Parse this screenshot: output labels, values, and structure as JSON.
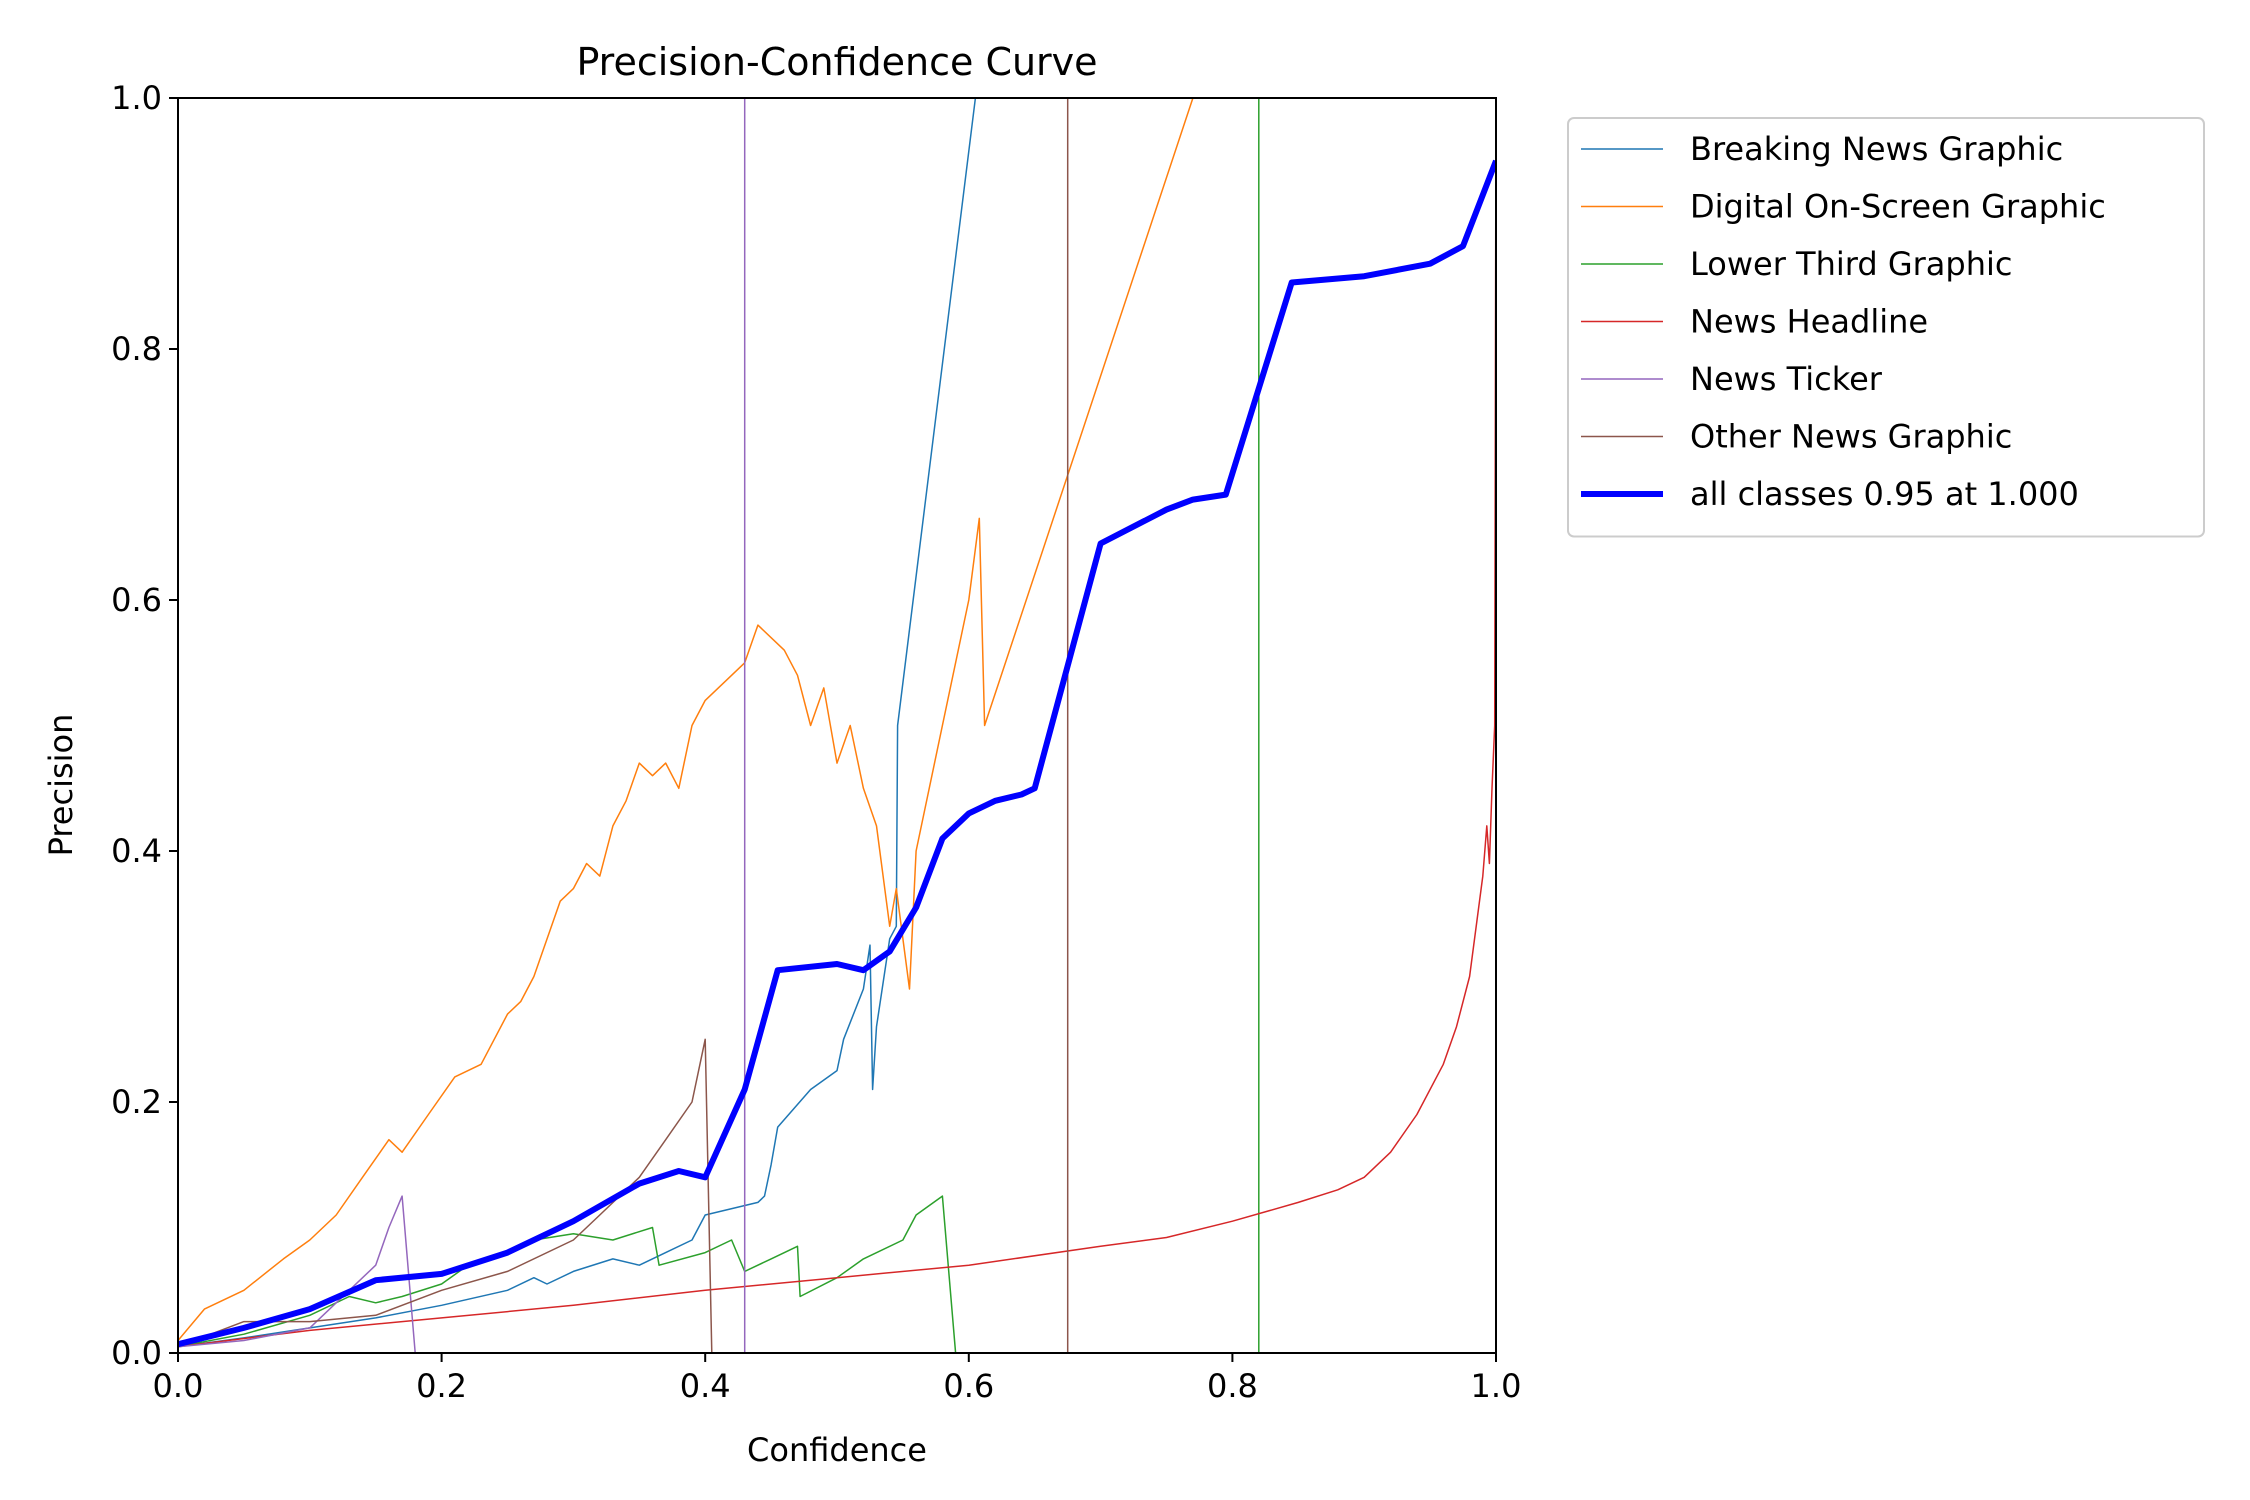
{
  "chart_data": {
    "type": "line",
    "title": "Precision-Confidence Curve",
    "xlabel": "Confidence",
    "ylabel": "Precision",
    "xlim": [
      0,
      1
    ],
    "ylim": [
      0,
      1
    ],
    "xticks": [
      "0.0",
      "0.2",
      "0.4",
      "0.6",
      "0.8",
      "1.0"
    ],
    "yticks": [
      "0.0",
      "0.2",
      "0.4",
      "0.6",
      "0.8",
      "1.0"
    ],
    "grid": false,
    "legend_position": "outside-top-right",
    "series": [
      {
        "name": "Breaking News Graphic",
        "color": "#1f77b4",
        "width": 1.5,
        "points": [
          [
            0,
            0.005
          ],
          [
            0.05,
            0.012
          ],
          [
            0.1,
            0.02
          ],
          [
            0.15,
            0.028
          ],
          [
            0.2,
            0.038
          ],
          [
            0.25,
            0.05
          ],
          [
            0.27,
            0.06
          ],
          [
            0.28,
            0.055
          ],
          [
            0.3,
            0.065
          ],
          [
            0.33,
            0.075
          ],
          [
            0.35,
            0.07
          ],
          [
            0.37,
            0.08
          ],
          [
            0.39,
            0.09
          ],
          [
            0.4,
            0.11
          ],
          [
            0.44,
            0.12
          ],
          [
            0.445,
            0.125
          ],
          [
            0.45,
            0.15
          ],
          [
            0.455,
            0.18
          ],
          [
            0.48,
            0.21
          ],
          [
            0.5,
            0.225
          ],
          [
            0.505,
            0.25
          ],
          [
            0.52,
            0.29
          ],
          [
            0.525,
            0.325
          ],
          [
            0.527,
            0.21
          ],
          [
            0.53,
            0.26
          ],
          [
            0.54,
            0.33
          ],
          [
            0.545,
            0.34
          ],
          [
            0.546,
            0.5
          ],
          [
            0.605,
            1.0
          ]
        ]
      },
      {
        "name": "Digital On-Screen Graphic",
        "color": "#ff7f0e",
        "width": 1.5,
        "points": [
          [
            0,
            0.01
          ],
          [
            0.02,
            0.035
          ],
          [
            0.05,
            0.05
          ],
          [
            0.08,
            0.075
          ],
          [
            0.1,
            0.09
          ],
          [
            0.12,
            0.11
          ],
          [
            0.14,
            0.14
          ],
          [
            0.16,
            0.17
          ],
          [
            0.17,
            0.16
          ],
          [
            0.19,
            0.19
          ],
          [
            0.21,
            0.22
          ],
          [
            0.23,
            0.23
          ],
          [
            0.25,
            0.27
          ],
          [
            0.26,
            0.28
          ],
          [
            0.27,
            0.3
          ],
          [
            0.29,
            0.36
          ],
          [
            0.3,
            0.37
          ],
          [
            0.31,
            0.39
          ],
          [
            0.32,
            0.38
          ],
          [
            0.33,
            0.42
          ],
          [
            0.34,
            0.44
          ],
          [
            0.35,
            0.47
          ],
          [
            0.36,
            0.46
          ],
          [
            0.37,
            0.47
          ],
          [
            0.38,
            0.45
          ],
          [
            0.39,
            0.5
          ],
          [
            0.4,
            0.52
          ],
          [
            0.42,
            0.54
          ],
          [
            0.43,
            0.55
          ],
          [
            0.44,
            0.58
          ],
          [
            0.46,
            0.56
          ],
          [
            0.47,
            0.54
          ],
          [
            0.48,
            0.5
          ],
          [
            0.49,
            0.53
          ],
          [
            0.5,
            0.47
          ],
          [
            0.51,
            0.5
          ],
          [
            0.52,
            0.45
          ],
          [
            0.53,
            0.42
          ],
          [
            0.54,
            0.34
          ],
          [
            0.545,
            0.37
          ],
          [
            0.555,
            0.29
          ],
          [
            0.56,
            0.4
          ],
          [
            0.58,
            0.5
          ],
          [
            0.6,
            0.6
          ],
          [
            0.608,
            0.665
          ],
          [
            0.612,
            0.5
          ],
          [
            0.77,
            1.0
          ]
        ]
      },
      {
        "name": "Lower Third Graphic",
        "color": "#2ca02c",
        "width": 1.5,
        "points": [
          [
            0,
            0.005
          ],
          [
            0.05,
            0.015
          ],
          [
            0.1,
            0.03
          ],
          [
            0.13,
            0.045
          ],
          [
            0.15,
            0.04
          ],
          [
            0.17,
            0.045
          ],
          [
            0.2,
            0.055
          ],
          [
            0.22,
            0.07
          ],
          [
            0.25,
            0.08
          ],
          [
            0.27,
            0.09
          ],
          [
            0.3,
            0.095
          ],
          [
            0.33,
            0.09
          ],
          [
            0.36,
            0.1
          ],
          [
            0.365,
            0.07
          ],
          [
            0.4,
            0.08
          ],
          [
            0.42,
            0.09
          ],
          [
            0.43,
            0.065
          ],
          [
            0.45,
            0.075
          ],
          [
            0.47,
            0.085
          ],
          [
            0.472,
            0.045
          ],
          [
            0.5,
            0.06
          ],
          [
            0.52,
            0.075
          ],
          [
            0.55,
            0.09
          ],
          [
            0.56,
            0.11
          ],
          [
            0.58,
            0.125
          ],
          [
            0.59,
            0.0
          ],
          [
            0.82,
            0.0
          ],
          [
            0.82,
            1.0
          ]
        ]
      },
      {
        "name": "News Headline",
        "color": "#d62728",
        "width": 1.5,
        "points": [
          [
            0,
            0.005
          ],
          [
            0.1,
            0.018
          ],
          [
            0.2,
            0.028
          ],
          [
            0.3,
            0.038
          ],
          [
            0.4,
            0.05
          ],
          [
            0.5,
            0.06
          ],
          [
            0.6,
            0.07
          ],
          [
            0.7,
            0.085
          ],
          [
            0.75,
            0.092
          ],
          [
            0.8,
            0.105
          ],
          [
            0.85,
            0.12
          ],
          [
            0.88,
            0.13
          ],
          [
            0.9,
            0.14
          ],
          [
            0.92,
            0.16
          ],
          [
            0.94,
            0.19
          ],
          [
            0.96,
            0.23
          ],
          [
            0.97,
            0.26
          ],
          [
            0.98,
            0.3
          ],
          [
            0.99,
            0.38
          ],
          [
            0.993,
            0.42
          ],
          [
            0.995,
            0.39
          ],
          [
            0.997,
            0.45
          ],
          [
            0.999,
            0.5
          ],
          [
            1.0,
            1.0
          ]
        ]
      },
      {
        "name": "News Ticker",
        "color": "#9467bd",
        "width": 1.5,
        "points": [
          [
            0,
            0.005
          ],
          [
            0.05,
            0.01
          ],
          [
            0.1,
            0.02
          ],
          [
            0.13,
            0.05
          ],
          [
            0.15,
            0.07
          ],
          [
            0.16,
            0.1
          ],
          [
            0.17,
            0.125
          ],
          [
            0.18,
            0.0
          ],
          [
            0.43,
            0.0
          ],
          [
            0.43,
            1.0
          ]
        ]
      },
      {
        "name": "Other News Graphic",
        "color": "#8c564b",
        "width": 1.5,
        "points": [
          [
            0,
            0.005
          ],
          [
            0.05,
            0.025
          ],
          [
            0.1,
            0.025
          ],
          [
            0.15,
            0.03
          ],
          [
            0.2,
            0.05
          ],
          [
            0.25,
            0.065
          ],
          [
            0.3,
            0.09
          ],
          [
            0.32,
            0.11
          ],
          [
            0.35,
            0.14
          ],
          [
            0.37,
            0.17
          ],
          [
            0.39,
            0.2
          ],
          [
            0.4,
            0.25
          ],
          [
            0.405,
            0.0
          ],
          [
            0.675,
            0.0
          ],
          [
            0.675,
            1.0
          ]
        ]
      },
      {
        "name": "all classes 0.95 at 1.000",
        "color": "#0000ff",
        "width": 6,
        "points": [
          [
            0,
            0.007
          ],
          [
            0.05,
            0.02
          ],
          [
            0.1,
            0.035
          ],
          [
            0.15,
            0.058
          ],
          [
            0.2,
            0.063
          ],
          [
            0.25,
            0.08
          ],
          [
            0.3,
            0.105
          ],
          [
            0.35,
            0.135
          ],
          [
            0.38,
            0.145
          ],
          [
            0.4,
            0.14
          ],
          [
            0.43,
            0.21
          ],
          [
            0.455,
            0.305
          ],
          [
            0.5,
            0.31
          ],
          [
            0.52,
            0.305
          ],
          [
            0.54,
            0.32
          ],
          [
            0.56,
            0.355
          ],
          [
            0.58,
            0.41
          ],
          [
            0.6,
            0.43
          ],
          [
            0.62,
            0.44
          ],
          [
            0.64,
            0.445
          ],
          [
            0.65,
            0.45
          ],
          [
            0.7,
            0.645
          ],
          [
            0.75,
            0.672
          ],
          [
            0.77,
            0.68
          ],
          [
            0.795,
            0.684
          ],
          [
            0.845,
            0.853
          ],
          [
            0.9,
            0.858
          ],
          [
            0.95,
            0.868
          ],
          [
            0.975,
            0.882
          ],
          [
            1.0,
            0.95
          ]
        ]
      }
    ]
  }
}
